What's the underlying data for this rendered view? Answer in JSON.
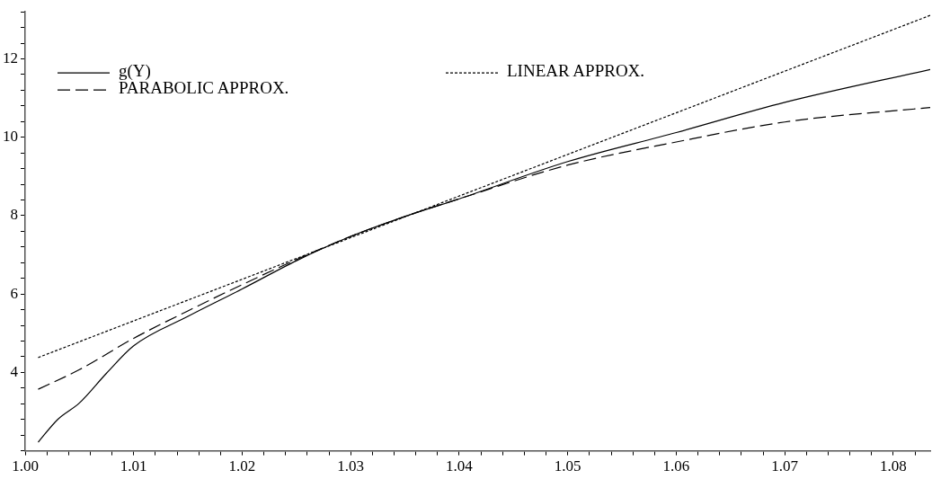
{
  "chart_data": {
    "type": "line",
    "xlim": [
      1.0,
      1.0834
    ],
    "ylim": [
      2.0,
      13.2
    ],
    "xticks": [
      {
        "value": 1.0,
        "label": "1.00"
      },
      {
        "value": 1.002,
        "label": null
      },
      {
        "value": 1.004,
        "label": null
      },
      {
        "value": 1.006,
        "label": null
      },
      {
        "value": 1.008,
        "label": null
      },
      {
        "value": 1.01,
        "label": "1.01"
      },
      {
        "value": 1.012,
        "label": null
      },
      {
        "value": 1.014,
        "label": null
      },
      {
        "value": 1.016,
        "label": null
      },
      {
        "value": 1.018,
        "label": null
      },
      {
        "value": 1.02,
        "label": "1.02"
      },
      {
        "value": 1.022,
        "label": null
      },
      {
        "value": 1.024,
        "label": null
      },
      {
        "value": 1.026,
        "label": null
      },
      {
        "value": 1.028,
        "label": null
      },
      {
        "value": 1.03,
        "label": "1.03"
      },
      {
        "value": 1.032,
        "label": null
      },
      {
        "value": 1.034,
        "label": null
      },
      {
        "value": 1.036,
        "label": null
      },
      {
        "value": 1.038,
        "label": null
      },
      {
        "value": 1.04,
        "label": "1.04"
      },
      {
        "value": 1.042,
        "label": null
      },
      {
        "value": 1.044,
        "label": null
      },
      {
        "value": 1.046,
        "label": null
      },
      {
        "value": 1.048,
        "label": null
      },
      {
        "value": 1.05,
        "label": "1.05"
      },
      {
        "value": 1.052,
        "label": null
      },
      {
        "value": 1.054,
        "label": null
      },
      {
        "value": 1.056,
        "label": null
      },
      {
        "value": 1.058,
        "label": null
      },
      {
        "value": 1.06,
        "label": "1.06"
      },
      {
        "value": 1.062,
        "label": null
      },
      {
        "value": 1.064,
        "label": null
      },
      {
        "value": 1.066,
        "label": null
      },
      {
        "value": 1.068,
        "label": null
      },
      {
        "value": 1.07,
        "label": "1.07"
      },
      {
        "value": 1.072,
        "label": null
      },
      {
        "value": 1.074,
        "label": null
      },
      {
        "value": 1.076,
        "label": null
      },
      {
        "value": 1.078,
        "label": null
      },
      {
        "value": 1.08,
        "label": "1.08"
      },
      {
        "value": 1.082,
        "label": null
      }
    ],
    "yticks": [
      {
        "value": 2.0,
        "label": null
      },
      {
        "value": 2.4,
        "label": null
      },
      {
        "value": 2.8,
        "label": null
      },
      {
        "value": 3.2,
        "label": null
      },
      {
        "value": 3.6,
        "label": null
      },
      4,
      {
        "value": 4.4,
        "label": null
      },
      {
        "value": 4.8,
        "label": null
      },
      {
        "value": 5.2,
        "label": null
      },
      {
        "value": 5.6,
        "label": null
      },
      6,
      {
        "value": 6.4,
        "label": null
      },
      {
        "value": 6.8,
        "label": null
      },
      {
        "value": 7.2,
        "label": null
      },
      {
        "value": 7.6,
        "label": null
      },
      8,
      {
        "value": 8.4,
        "label": null
      },
      {
        "value": 8.8,
        "label": null
      },
      {
        "value": 9.2,
        "label": null
      },
      {
        "value": 9.6,
        "label": null
      },
      10,
      {
        "value": 10.4,
        "label": null
      },
      {
        "value": 10.8,
        "label": null
      },
      {
        "value": 11.2,
        "label": null
      },
      {
        "value": 11.6,
        "label": null
      },
      12,
      {
        "value": 12.4,
        "label": null
      },
      {
        "value": 12.8,
        "label": null
      },
      {
        "value": 13.2,
        "label": null
      }
    ],
    "grid": false,
    "legend": "top left",
    "marker": "none",
    "series": [
      {
        "name": "g(Y)",
        "color": "#000000",
        "line_style": "solid",
        "x": [
          1.0012,
          1.003,
          1.005,
          1.0075,
          1.01,
          1.015,
          1.02,
          1.025,
          1.03,
          1.035,
          1.04,
          1.05,
          1.06,
          1.07,
          1.0834
        ],
        "values": [
          2.22,
          2.8,
          3.22,
          3.98,
          4.68,
          5.43,
          6.13,
          6.85,
          7.47,
          7.98,
          8.43,
          9.38,
          10.12,
          10.89,
          11.73
        ]
      },
      {
        "name": "LINEAR APPROX.",
        "color": "#000000",
        "line_style": "dotted",
        "x": [
          1.0012,
          1.0834
        ],
        "values": [
          4.38,
          13.11
        ]
      },
      {
        "name": "PARABOLIC APPROX.",
        "color": "#000000",
        "line_style": "dashed",
        "x": [
          1.0012,
          1.005,
          1.01,
          1.015,
          1.02,
          1.025,
          1.03,
          1.035,
          1.04,
          1.05,
          1.06,
          1.07,
          1.0834
        ],
        "values": [
          3.57,
          4.07,
          4.87,
          5.57,
          6.24,
          6.88,
          7.47,
          7.98,
          8.43,
          9.29,
          9.88,
          10.39,
          10.76
        ]
      }
    ]
  }
}
